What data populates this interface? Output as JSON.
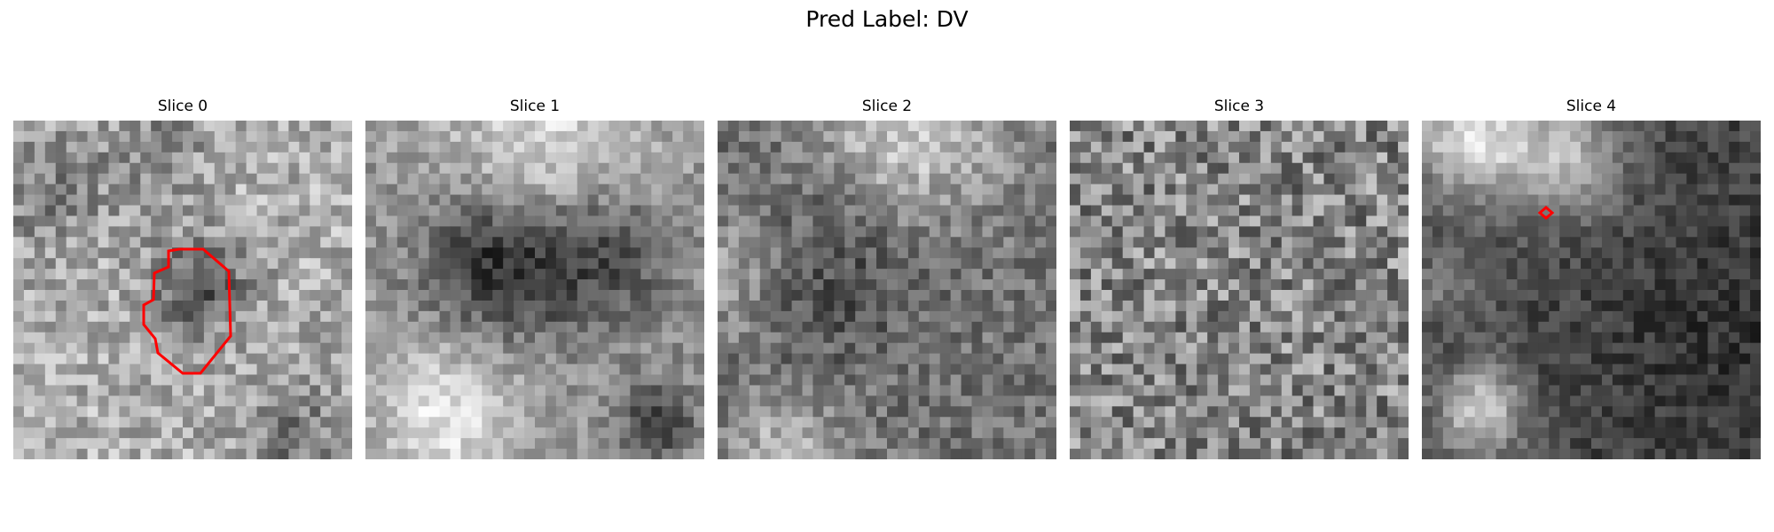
{
  "figure": {
    "suptitle": "Pred Label: DV"
  },
  "slices": [
    {
      "title": "Slice 0",
      "has_contour": true
    },
    {
      "title": "Slice 1",
      "has_contour": false
    },
    {
      "title": "Slice 2",
      "has_contour": false
    },
    {
      "title": "Slice 3",
      "has_contour": false
    },
    {
      "title": "Slice 4",
      "has_contour": true
    }
  ],
  "colors": {
    "contour": "#ff0000",
    "colormap": "gray"
  }
}
